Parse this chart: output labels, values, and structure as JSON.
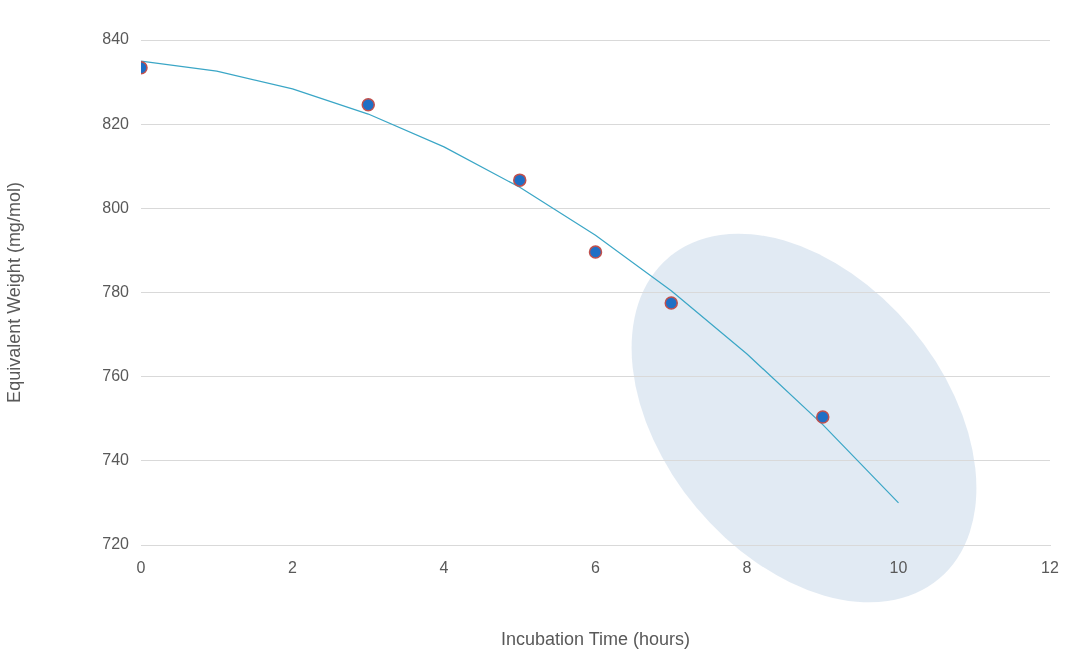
{
  "chart_data": {
    "type": "scatter",
    "xlabel": "Incubation Time (hours)",
    "ylabel": "Equivalent Weight (mg/mol)",
    "xlim": [
      0,
      12
    ],
    "xticks": [
      0,
      2,
      4,
      6,
      8,
      10,
      12
    ],
    "ylim": [
      720,
      840
    ],
    "yticks": [
      720,
      740,
      760,
      780,
      800,
      820,
      840
    ],
    "grid": "y",
    "legend": false,
    "marker": "circle",
    "series": [
      {
        "color": "#1f6fc5",
        "x": [
          0,
          3,
          5,
          6,
          7,
          9
        ],
        "values": [
          833.4,
          824.6,
          806.7,
          789.6,
          777.5,
          750.4
        ]
      },
      {
        "type": "line",
        "color": "#3aa6c6",
        "marker": "none",
        "x": [
          0,
          1,
          2,
          3,
          4,
          5,
          6,
          7,
          8,
          9,
          10
        ],
        "values": [
          835,
          832.6,
          828.4,
          822.4,
          814.6,
          805,
          793.6,
          780.4,
          765.4,
          748.6,
          730
        ]
      }
    ]
  }
}
